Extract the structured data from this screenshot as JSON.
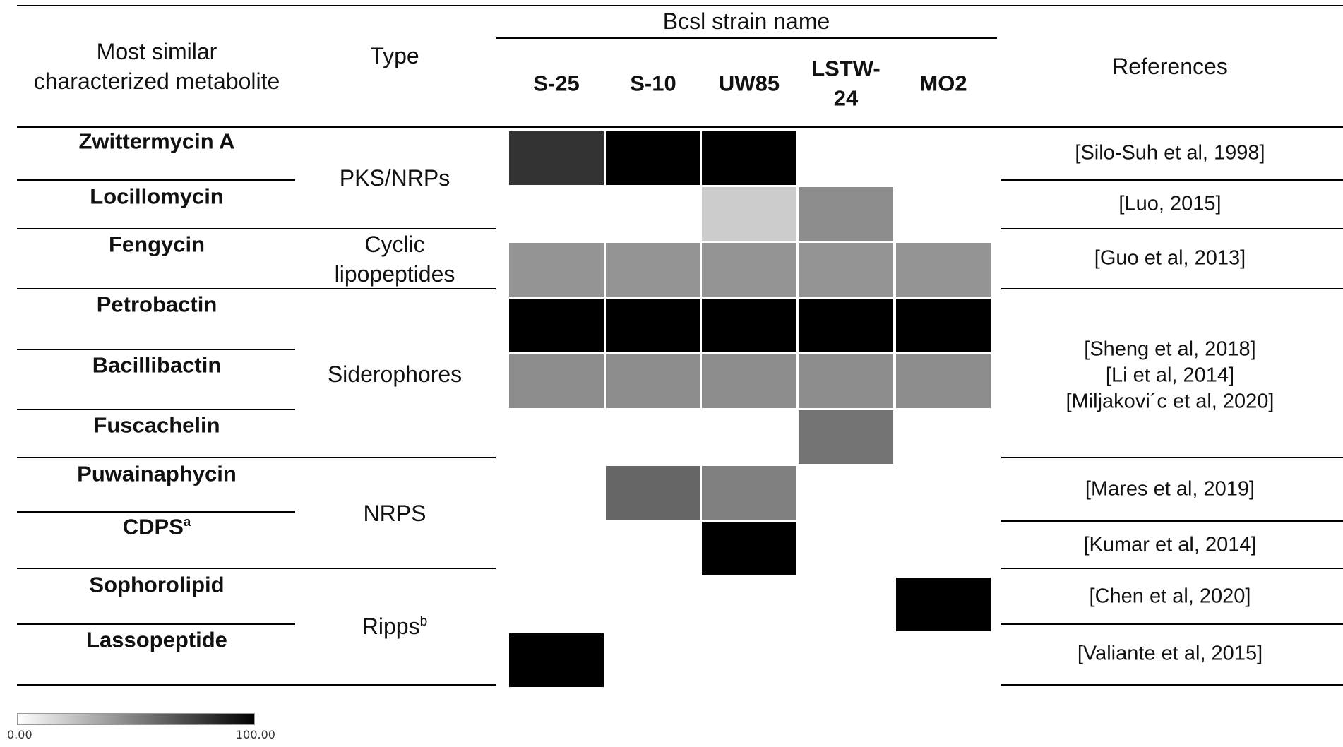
{
  "headers": {
    "metabolite": [
      "Most similar",
      "characterized metabolite"
    ],
    "type": "Type",
    "strain_group": "Bcsl strain name",
    "references": "References"
  },
  "strains": [
    {
      "lines": [
        "S-25"
      ]
    },
    {
      "lines": [
        "S-10"
      ]
    },
    {
      "lines": [
        "UW85"
      ]
    },
    {
      "lines": [
        "LSTW-",
        "24"
      ]
    },
    {
      "lines": [
        "MO2"
      ]
    }
  ],
  "rows": [
    {
      "name": "Zwittermycin A"
    },
    {
      "name": "Locillomycin"
    },
    {
      "name": "Fengycin"
    },
    {
      "name": "Petrobactin"
    },
    {
      "name": "Bacillibactin"
    },
    {
      "name": "Fuscachelin"
    },
    {
      "name": "Puwainaphycin"
    },
    {
      "name": "CDPS",
      "sup": "a"
    },
    {
      "name": "Sophorolipid"
    },
    {
      "name": "Lassopeptide"
    }
  ],
  "type_groups": [
    {
      "lines": [
        "PKS/NRPs"
      ]
    },
    {
      "lines": [
        "Cyclic",
        "lipopeptides"
      ]
    },
    {
      "lines": [
        "Siderophores"
      ]
    },
    {
      "lines": [
        "NRPS"
      ]
    },
    {
      "lines": [
        "Ripps"
      ],
      "sup": "b"
    }
  ],
  "reference_groups": [
    {
      "lines": [
        "[Silo-Suh et al, 1998]"
      ]
    },
    {
      "lines": [
        "[Luo, 2015]"
      ]
    },
    {
      "lines": [
        "[Guo et al, 2013]"
      ]
    },
    {
      "lines": [
        "[Sheng et al, 2018]",
        "[Li et al, 2014]",
        "[Miljakovi´c et al, 2020]"
      ]
    },
    {
      "lines": [
        "[Mares et al, 2019]"
      ]
    },
    {
      "lines": [
        "[Kumar et al, 2014]"
      ]
    },
    {
      "lines": [
        "[Chen et al, 2020]"
      ]
    },
    {
      "lines": [
        "[Valiante et al, 2015]"
      ]
    }
  ],
  "chart_data": {
    "type": "heatmap",
    "columns": [
      "S-25",
      "S-10",
      "UW85",
      "LSTW-24",
      "MO2"
    ],
    "rows": [
      "Zwittermycin A",
      "Locillomycin",
      "Fengycin",
      "Petrobactin",
      "Bacillibactin",
      "Fuscachelin",
      "Puwainaphycin",
      "CDPS",
      "Sophorolipid",
      "Lassopeptide"
    ],
    "values": [
      [
        80,
        100,
        100,
        null,
        null
      ],
      [
        null,
        null,
        20,
        45,
        null
      ],
      [
        42,
        42,
        42,
        42,
        42
      ],
      [
        100,
        100,
        100,
        100,
        100
      ],
      [
        45,
        45,
        45,
        45,
        45
      ],
      [
        null,
        null,
        null,
        55,
        null
      ],
      [
        null,
        60,
        50,
        null,
        null
      ],
      [
        null,
        null,
        100,
        null,
        null
      ],
      [
        null,
        null,
        null,
        null,
        100
      ],
      [
        100,
        null,
        null,
        null,
        null
      ]
    ],
    "scale": {
      "min": 0,
      "max": 100,
      "min_label": "0.00",
      "max_label": "100.00",
      "colors": [
        "#ffffff",
        "#000000"
      ]
    }
  }
}
